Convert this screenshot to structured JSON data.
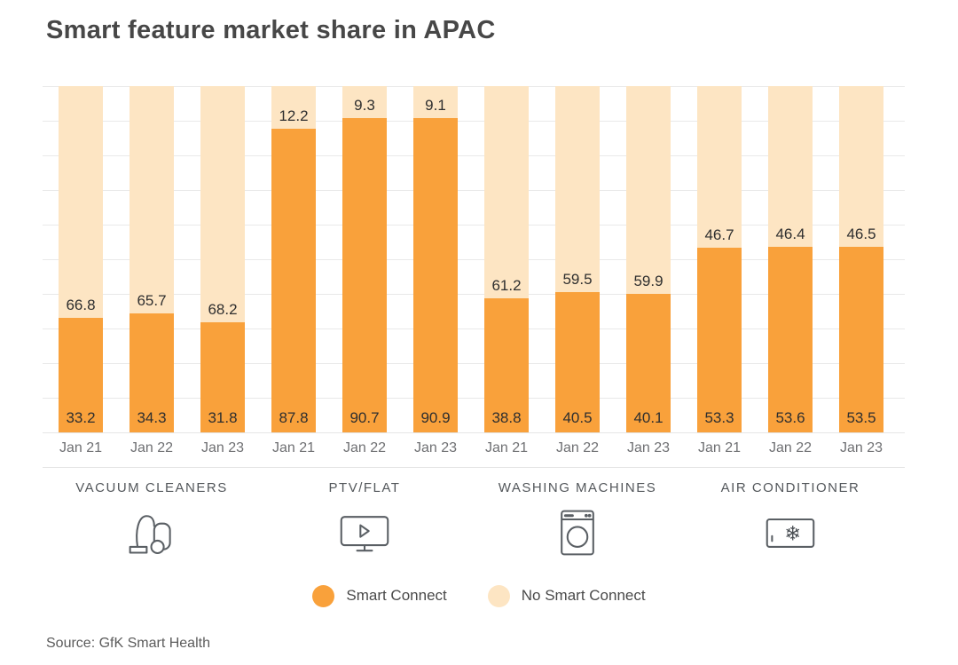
{
  "title": "Smart feature market share in APAC",
  "source_note": "Source: GfK Smart Health",
  "colors": {
    "smart_connect": "#F9A13B",
    "no_smart_connect": "#FDE5C3",
    "gridline": "#E9E9E9",
    "title_text": "#474747",
    "value_label_text": "#2F2F2F",
    "axis_text": "#6F7073",
    "category_text": "#54585C",
    "icon_stroke": "#5A5F64"
  },
  "legend": {
    "items": [
      {
        "label": "Smart Connect",
        "color": "#F9A13B"
      },
      {
        "label": "No Smart Connect",
        "color": "#FDE5C3"
      }
    ]
  },
  "chart_data": {
    "type": "bar",
    "stacked": true,
    "orientation": "vertical",
    "unit": "percent",
    "ylim": [
      0,
      100
    ],
    "grid": "horizontal gridlines every 10%",
    "legend_position": "bottom",
    "series_names": [
      "Smart Connect",
      "No Smart Connect"
    ],
    "groups": [
      {
        "category": "VACUUM CLEANERS",
        "icon": "vacuum-cleaner-icon",
        "x": [
          "Jan 21",
          "Jan 22",
          "Jan 23"
        ],
        "smart_connect": [
          33.2,
          34.3,
          31.8
        ],
        "no_smart_connect": [
          66.8,
          65.7,
          68.2
        ]
      },
      {
        "category": "PTV/FLAT",
        "icon": "tv-play-icon",
        "x": [
          "Jan 21",
          "Jan 22",
          "Jan 23"
        ],
        "smart_connect": [
          87.8,
          90.7,
          90.9
        ],
        "no_smart_connect": [
          12.2,
          9.3,
          9.1
        ]
      },
      {
        "category": "WASHING MACHINES",
        "icon": "washing-machine-icon",
        "x": [
          "Jan 21",
          "Jan 22",
          "Jan 23"
        ],
        "smart_connect": [
          38.8,
          40.5,
          40.1
        ],
        "no_smart_connect": [
          61.2,
          59.5,
          59.9
        ]
      },
      {
        "category": "AIR CONDITIONER",
        "icon": "air-conditioner-icon",
        "x": [
          "Jan 21",
          "Jan 22",
          "Jan 23"
        ],
        "smart_connect": [
          53.3,
          53.6,
          53.5
        ],
        "no_smart_connect": [
          46.7,
          46.4,
          46.5
        ]
      }
    ]
  }
}
